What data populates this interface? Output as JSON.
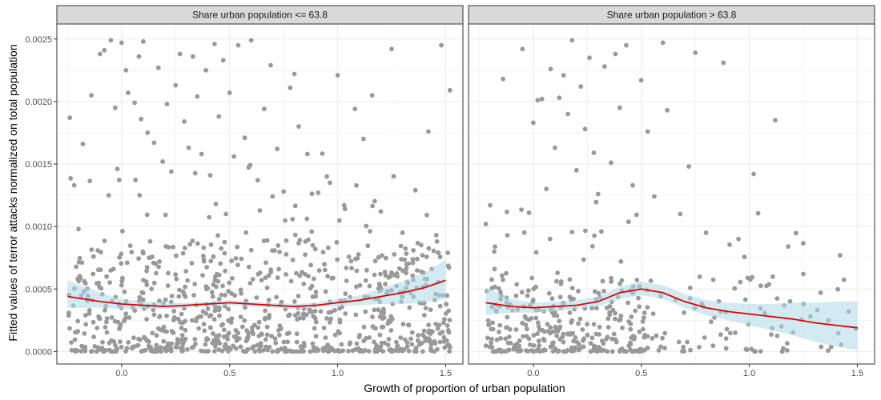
{
  "chart_data": {
    "type": "scatter",
    "xlabel": "Growth of proportion of urban population",
    "ylabel": "Fitted values of terror attacks normalized on total population",
    "xlim": [
      -0.3,
      1.58
    ],
    "ylim": [
      -0.0001,
      0.00262
    ],
    "x_ticks": [
      0.0,
      0.5,
      1.0,
      1.5
    ],
    "x_tick_labels": [
      "0.0",
      "0.5",
      "1.0",
      "1.5"
    ],
    "y_ticks": [
      0.0,
      0.0005,
      0.001,
      0.0015,
      0.002,
      0.0025
    ],
    "y_tick_labels": [
      "0.0000",
      "0.0005",
      "0.0010",
      "0.0015",
      "0.0020",
      "0.0025"
    ],
    "grid": true,
    "legend": "none",
    "colors": {
      "points": "#999999",
      "smooth_line": "#e00000",
      "confidence_band": "#add8e6",
      "strip_fill": "#d9d9d9",
      "panel_border": "#333333",
      "grid": "#ebebeb"
    },
    "panels": [
      {
        "strip_label": "Share urban population <= 63.8",
        "smooth": {
          "x": [
            -0.25,
            -0.1,
            0.0,
            0.1,
            0.2,
            0.3,
            0.4,
            0.5,
            0.6,
            0.7,
            0.8,
            0.9,
            1.0,
            1.1,
            1.2,
            1.3,
            1.4,
            1.5
          ],
          "y": [
            0.00044,
            0.0004,
            0.00038,
            0.00037,
            0.00036,
            0.00037,
            0.00038,
            0.00039,
            0.00038,
            0.00037,
            0.00036,
            0.00037,
            0.00039,
            0.00041,
            0.00044,
            0.00047,
            0.00051,
            0.00057
          ],
          "lower": [
            0.00035,
            0.00035,
            0.00034,
            0.00034,
            0.00034,
            0.00035,
            0.00036,
            0.00037,
            0.00036,
            0.00035,
            0.00034,
            0.00035,
            0.00036,
            0.00037,
            0.00038,
            0.00038,
            0.00039,
            0.00042
          ],
          "upper": [
            0.00057,
            0.00047,
            0.00042,
            0.0004,
            0.00039,
            0.00039,
            0.0004,
            0.00041,
            0.0004,
            0.00039,
            0.00038,
            0.00039,
            0.00042,
            0.00045,
            0.0005,
            0.00056,
            0.00063,
            0.00073
          ]
        },
        "points": [
          {
            "x": -0.24,
            "y": 0.00187
          },
          {
            "x": -0.22,
            "y": 0.00133
          },
          {
            "x": -0.2,
            "y": 0.00098
          },
          {
            "x": -0.18,
            "y": 0.00166
          },
          {
            "x": -0.14,
            "y": 0.00205
          },
          {
            "x": -0.13,
            "y": 0.00076
          },
          {
            "x": -0.1,
            "y": 0.00238
          },
          {
            "x": -0.08,
            "y": 0.00241
          },
          {
            "x": -0.06,
            "y": 0.00125
          },
          {
            "x": -0.05,
            "y": 0.00249
          },
          {
            "x": -0.03,
            "y": 0.00195
          },
          {
            "x": -0.02,
            "y": 0.00146
          },
          {
            "x": 0.0,
            "y": 0.00247
          },
          {
            "x": 0.02,
            "y": 0.00225
          },
          {
            "x": 0.03,
            "y": 0.00207
          },
          {
            "x": 0.06,
            "y": 0.00199
          },
          {
            "x": 0.08,
            "y": 0.00236
          },
          {
            "x": 0.09,
            "y": 0.00186
          },
          {
            "x": 0.1,
            "y": 0.00248
          },
          {
            "x": 0.12,
            "y": 0.00175
          },
          {
            "x": 0.15,
            "y": 0.00167
          },
          {
            "x": 0.17,
            "y": 0.00227
          },
          {
            "x": 0.19,
            "y": 0.00152
          },
          {
            "x": 0.21,
            "y": 0.00198
          },
          {
            "x": 0.23,
            "y": 0.00144
          },
          {
            "x": 0.25,
            "y": 0.00213
          },
          {
            "x": 0.27,
            "y": 0.00238
          },
          {
            "x": 0.29,
            "y": 0.00184
          },
          {
            "x": 0.31,
            "y": 0.00163
          },
          {
            "x": 0.33,
            "y": 0.00236
          },
          {
            "x": 0.35,
            "y": 0.00204
          },
          {
            "x": 0.37,
            "y": 0.00158
          },
          {
            "x": 0.39,
            "y": 0.00225
          },
          {
            "x": 0.41,
            "y": 0.00141
          },
          {
            "x": 0.43,
            "y": 0.00246
          },
          {
            "x": 0.45,
            "y": 0.00188
          },
          {
            "x": 0.47,
            "y": 0.00233
          },
          {
            "x": 0.5,
            "y": 0.00207
          },
          {
            "x": 0.52,
            "y": 0.00156
          },
          {
            "x": 0.54,
            "y": 0.00245
          },
          {
            "x": 0.57,
            "y": 0.00171
          },
          {
            "x": 0.6,
            "y": 0.00249
          },
          {
            "x": 0.63,
            "y": 0.00137
          },
          {
            "x": 0.66,
            "y": 0.00194
          },
          {
            "x": 0.69,
            "y": 0.00229
          },
          {
            "x": 0.72,
            "y": 0.00162
          },
          {
            "x": 0.75,
            "y": 0.00128
          },
          {
            "x": 0.78,
            "y": 0.00211
          },
          {
            "x": 0.8,
            "y": 0.00222
          },
          {
            "x": 0.82,
            "y": 0.0018
          },
          {
            "x": 0.86,
            "y": 0.00158
          },
          {
            "x": 0.88,
            "y": 0.00096
          },
          {
            "x": 0.91,
            "y": 0.00127
          },
          {
            "x": 0.95,
            "y": 0.0014
          },
          {
            "x": 1.0,
            "y": 0.00221
          },
          {
            "x": 1.03,
            "y": 0.00117
          },
          {
            "x": 1.08,
            "y": 0.00194
          },
          {
            "x": 1.12,
            "y": 0.0017
          },
          {
            "x": 1.16,
            "y": 0.00205
          },
          {
            "x": 1.2,
            "y": 0.00112
          },
          {
            "x": 1.25,
            "y": 0.00242
          },
          {
            "x": 1.3,
            "y": 0.00095
          },
          {
            "x": 1.36,
            "y": 0.00129
          },
          {
            "x": 1.42,
            "y": 0.00176
          },
          {
            "x": 1.46,
            "y": 0.00088
          },
          {
            "x": 1.48,
            "y": 0.00245
          },
          {
            "x": 1.52,
            "y": 0.00209
          }
        ]
      },
      {
        "strip_label": "Share urban population > 63.8",
        "smooth": {
          "x": [
            -0.22,
            -0.1,
            0.0,
            0.1,
            0.2,
            0.3,
            0.4,
            0.5,
            0.6,
            0.7,
            0.8,
            0.9,
            1.0,
            1.1,
            1.2,
            1.3,
            1.4,
            1.5
          ],
          "y": [
            0.00039,
            0.00036,
            0.00035,
            0.00036,
            0.00037,
            0.0004,
            0.00047,
            0.0005,
            0.00047,
            0.0004,
            0.00035,
            0.00032,
            0.0003,
            0.00028,
            0.00026,
            0.00023,
            0.00021,
            0.00019
          ],
          "lower": [
            0.00029,
            0.00031,
            0.00031,
            0.00032,
            0.00034,
            0.00036,
            0.00042,
            0.00045,
            0.00042,
            0.00035,
            0.00029,
            0.00025,
            0.00021,
            0.00017,
            0.00013,
            8e-05,
            4e-05,
            1e-05
          ],
          "upper": [
            0.00051,
            0.00042,
            0.00039,
            0.0004,
            0.00041,
            0.00044,
            0.00052,
            0.00056,
            0.00053,
            0.00046,
            0.00041,
            0.00039,
            0.00038,
            0.00038,
            0.00039,
            0.00039,
            0.0004,
            0.0004
          ]
        },
        "points": [
          {
            "x": -0.22,
            "y": 0.00102
          },
          {
            "x": -0.2,
            "y": 0.00117
          },
          {
            "x": -0.18,
            "y": 0.00066
          },
          {
            "x": -0.14,
            "y": 0.00218
          },
          {
            "x": -0.12,
            "y": 0.00093
          },
          {
            "x": -0.05,
            "y": 0.00242
          },
          {
            "x": -0.02,
            "y": 0.00111
          },
          {
            "x": 0.0,
            "y": 0.00183
          },
          {
            "x": 0.02,
            "y": 0.00201
          },
          {
            "x": 0.04,
            "y": 0.00202
          },
          {
            "x": 0.06,
            "y": 0.0013
          },
          {
            "x": 0.08,
            "y": 0.00226
          },
          {
            "x": 0.1,
            "y": 0.00163
          },
          {
            "x": 0.12,
            "y": 0.00203
          },
          {
            "x": 0.14,
            "y": 0.00221
          },
          {
            "x": 0.16,
            "y": 0.0019
          },
          {
            "x": 0.18,
            "y": 0.00249
          },
          {
            "x": 0.2,
            "y": 0.00145
          },
          {
            "x": 0.22,
            "y": 0.00212
          },
          {
            "x": 0.24,
            "y": 0.00178
          },
          {
            "x": 0.26,
            "y": 0.00235
          },
          {
            "x": 0.28,
            "y": 0.00159
          },
          {
            "x": 0.3,
            "y": 0.00126
          },
          {
            "x": 0.33,
            "y": 0.00228
          },
          {
            "x": 0.36,
            "y": 0.00151
          },
          {
            "x": 0.38,
            "y": 0.00238
          },
          {
            "x": 0.4,
            "y": 0.00195
          },
          {
            "x": 0.43,
            "y": 0.00245
          },
          {
            "x": 0.46,
            "y": 0.00133
          },
          {
            "x": 0.5,
            "y": 0.00217
          },
          {
            "x": 0.53,
            "y": 0.00176
          },
          {
            "x": 0.56,
            "y": 0.00124
          },
          {
            "x": 0.6,
            "y": 0.00247
          },
          {
            "x": 0.62,
            "y": 0.00193
          },
          {
            "x": 0.68,
            "y": 0.0011
          },
          {
            "x": 0.72,
            "y": 0.00148
          },
          {
            "x": 0.75,
            "y": 0.00239
          },
          {
            "x": 0.8,
            "y": 0.00095
          },
          {
            "x": 0.88,
            "y": 0.00231
          },
          {
            "x": 0.95,
            "y": 0.0009
          },
          {
            "x": 1.02,
            "y": 0.00142
          },
          {
            "x": 1.12,
            "y": 0.00185
          },
          {
            "x": 1.18,
            "y": 0.00084
          },
          {
            "x": 1.25,
            "y": 0.00062
          },
          {
            "x": 1.33,
            "y": 0.00047
          },
          {
            "x": 1.42,
            "y": 0.00077
          },
          {
            "x": 1.46,
            "y": 0.00032
          }
        ]
      }
    ]
  }
}
